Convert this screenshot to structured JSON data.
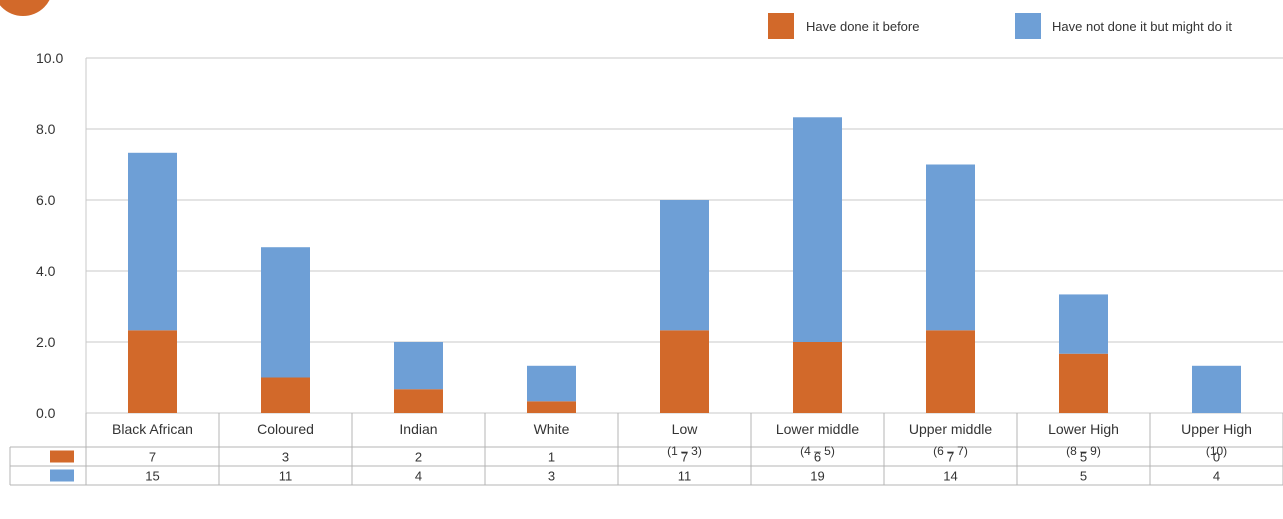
{
  "chart_data": {
    "type": "bar",
    "stacked": true,
    "categories": [
      {
        "label": "Black African",
        "sub": ""
      },
      {
        "label": "Coloured",
        "sub": ""
      },
      {
        "label": "Indian",
        "sub": ""
      },
      {
        "label": "White",
        "sub": ""
      },
      {
        "label": "Low",
        "sub": "(1 – 3)"
      },
      {
        "label": "Lower middle",
        "sub": "(4 – 5)"
      },
      {
        "label": "Upper middle",
        "sub": "(6 – 7)"
      },
      {
        "label": "Lower High",
        "sub": "(8 – 9)"
      },
      {
        "label": "Upper High",
        "sub": "(10)"
      }
    ],
    "series": [
      {
        "name": "Have done it before",
        "color": "#D2692A",
        "values": [
          2.33,
          1.0,
          0.67,
          0.33,
          2.33,
          2.0,
          2.33,
          1.67,
          0.0
        ],
        "table_values": [
          "7",
          "3",
          "2",
          "1",
          "7",
          "6",
          "7",
          "5",
          "0"
        ]
      },
      {
        "name": "Have not done it but might do it",
        "color": "#6E9FD6",
        "values": [
          5.0,
          3.67,
          1.33,
          1.0,
          3.67,
          6.33,
          4.67,
          1.67,
          1.33
        ],
        "table_values": [
          "15",
          "11",
          "4",
          "3",
          "11",
          "19",
          "14",
          "5",
          "4"
        ]
      }
    ],
    "yticks": [
      "0.0",
      "2.0",
      "4.0",
      "6.0",
      "8.0",
      "10.0"
    ],
    "ylim": [
      0,
      10
    ],
    "grid": true,
    "legend_position": "top-right",
    "title": "",
    "xlabel": "",
    "ylabel": ""
  },
  "decor": {
    "badge_color": "#D2692A"
  }
}
